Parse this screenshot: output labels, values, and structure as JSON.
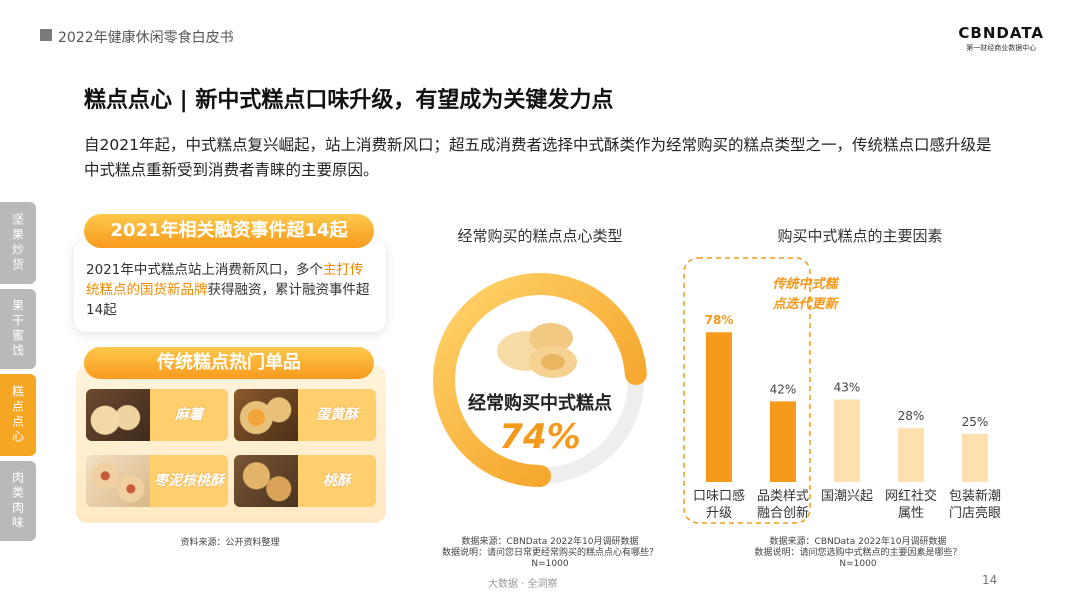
{
  "header": {
    "title": "2022年健康休闲零食白皮书",
    "logo_main": "CBNDATA",
    "logo_sub": "第一财经商业数据中心"
  },
  "page_title": "糕点点心 | 新中式糕点口味升级，有望成为关键发力点",
  "subtitle": "自2021年起，中式糕点复兴崛起，站上消费新风口；超五成消费者选择中式酥类作为经常购买的糕点类型之一，传统糕点口感升级是中式糕点重新受到消费者青睐的主要原因。",
  "side_tabs": [
    {
      "label": "坚果炒货",
      "active": false
    },
    {
      "label": "果干蜜饯",
      "active": false
    },
    {
      "label": "糕点点心",
      "active": true
    },
    {
      "label": "肉类肉味",
      "active": false
    }
  ],
  "left": {
    "financing_title": "2021年相关融资事件超14起",
    "financing_text_1": "2021年中式糕点站上消费新风口，多个",
    "financing_text_hl": "主打传统糕点的国货新品牌",
    "financing_text_2": "获得融资，累计融资事件超14起",
    "products_title": "传统糕点热门单品",
    "products": [
      "麻薯",
      "蛋黄酥",
      "枣泥核桃酥",
      "桃酥"
    ],
    "source": "资料来源：公开资料整理"
  },
  "donut": {
    "title": "经常购买的糕点点心类型",
    "center_label": "经常购买中式糕点",
    "percent_label": "74%",
    "source_1": "数据来源：CBNData 2022年10月调研数据",
    "source_2": "数据说明：请问您日常更经常购买的糕点点心有哪些？",
    "source_3": "N=1000"
  },
  "bars": {
    "title": "购买中式糕点的主要因素",
    "callout": "传统中式糕点迭代更新",
    "source_1": "数据来源：CBNData 2022年10月调研数据",
    "source_2": "数据说明：请问您选购中式糕点的主要因素是哪些？",
    "source_3": "N=1000"
  },
  "chart_data": [
    {
      "type": "pie",
      "title": "经常购买的糕点点心类型",
      "categories": [
        "经常购买中式糕点"
      ],
      "values": [
        74
      ],
      "unit": "%"
    },
    {
      "type": "bar",
      "title": "购买中式糕点的主要因素",
      "categories": [
        "口味口感升级",
        "品类样式融合创新",
        "国潮兴起",
        "网红社交属性",
        "包装新潮门店亮眼"
      ],
      "category_lines": [
        [
          "口味口感",
          "升级"
        ],
        [
          "品类样式",
          "融合创新"
        ],
        [
          "国潮兴起"
        ],
        [
          "网红社交",
          "属性"
        ],
        [
          "包装新潮",
          "门店亮眼"
        ]
      ],
      "values": [
        78,
        42,
        43,
        28,
        25
      ],
      "value_labels": [
        "78%",
        "42%",
        "43%",
        "28%",
        "25%"
      ],
      "unit": "%",
      "highlighted": [
        0,
        1
      ],
      "colors": {
        "highlight": "#f59a1c",
        "normal": "#fde0ad"
      }
    }
  ],
  "footer": "大数据 · 全洞察",
  "page_number": "14",
  "colors": {
    "accent": "#f59a1c",
    "accent_light": "#ffc94a",
    "tab_gray": "#b8b8b8",
    "text": "#222222"
  }
}
